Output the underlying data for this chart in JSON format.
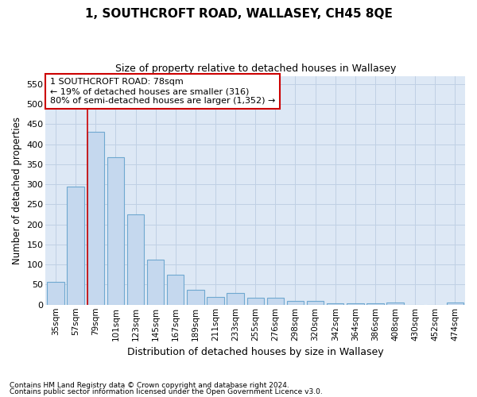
{
  "title": "1, SOUTHCROFT ROAD, WALLASEY, CH45 8QE",
  "subtitle": "Size of property relative to detached houses in Wallasey",
  "xlabel": "Distribution of detached houses by size in Wallasey",
  "ylabel": "Number of detached properties",
  "categories": [
    "35sqm",
    "57sqm",
    "79sqm",
    "101sqm",
    "123sqm",
    "145sqm",
    "167sqm",
    "189sqm",
    "211sqm",
    "233sqm",
    "255sqm",
    "276sqm",
    "298sqm",
    "320sqm",
    "342sqm",
    "364sqm",
    "386sqm",
    "408sqm",
    "430sqm",
    "452sqm",
    "474sqm"
  ],
  "values": [
    57,
    295,
    430,
    367,
    225,
    113,
    75,
    38,
    20,
    29,
    18,
    17,
    10,
    10,
    4,
    4,
    4,
    6,
    0,
    0,
    5
  ],
  "bar_color": "#c5d8ee",
  "bar_edge_color": "#6fa8d0",
  "highlight_index": 2,
  "red_line_color": "#cc0000",
  "annotation_text": "1 SOUTHCROFT ROAD: 78sqm\n← 19% of detached houses are smaller (316)\n80% of semi-detached houses are larger (1,352) →",
  "annotation_box_facecolor": "#ffffff",
  "annotation_box_edgecolor": "#cc0000",
  "ylim": [
    0,
    570
  ],
  "yticks": [
    0,
    50,
    100,
    150,
    200,
    250,
    300,
    350,
    400,
    450,
    500,
    550
  ],
  "plot_bg_color": "#dde8f5",
  "fig_bg_color": "#ffffff",
  "grid_color": "#c0d0e4",
  "footer1": "Contains HM Land Registry data © Crown copyright and database right 2024.",
  "footer2": "Contains public sector information licensed under the Open Government Licence v3.0."
}
